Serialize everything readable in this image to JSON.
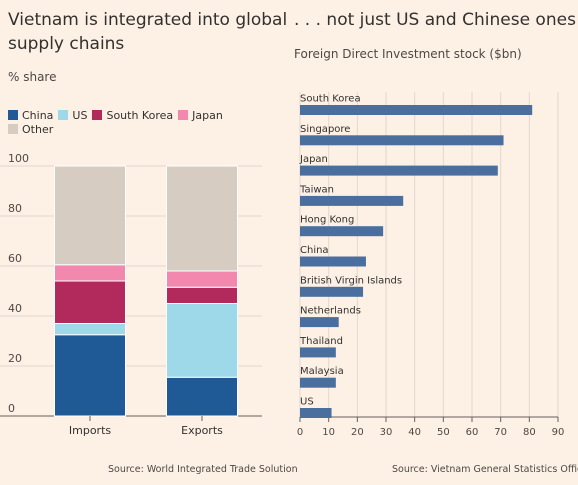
{
  "left_panel": {
    "title_line1": "Vietnam is integrated into global",
    "title_line2": "supply chains",
    "unit_label": "% share",
    "source": "Source: World Integrated Trade Solution"
  },
  "right_panel": {
    "title": ". . . not just US and Chinese ones",
    "subtitle": "Foreign Direct Investment stock ($bn)",
    "source": "Source: Vietnam General Statistics Office"
  },
  "colors": {
    "China": "#1f5a96",
    "US": "#9dd9e9",
    "South Korea": "#b22a5c",
    "Japan": "#f388ae",
    "Other": "#d7ccc2",
    "fdi_bar": "#4a6e9e",
    "background": "#fdf1e6"
  },
  "chart_data": [
    {
      "type": "bar",
      "stacked": true,
      "title": "Vietnam is integrated into global supply chains",
      "ylabel": "% share",
      "categories": [
        "Imports",
        "Exports"
      ],
      "series": [
        {
          "name": "China",
          "values": [
            32.5,
            15.5
          ]
        },
        {
          "name": "US",
          "values": [
            4.5,
            29.5
          ]
        },
        {
          "name": "South Korea",
          "values": [
            17.0,
            6.5
          ]
        },
        {
          "name": "Japan",
          "values": [
            6.5,
            6.5
          ]
        },
        {
          "name": "Other",
          "values": [
            39.5,
            42.0
          ]
        }
      ],
      "ylim": [
        0,
        100
      ],
      "yticks": [
        0,
        20,
        40,
        60,
        80,
        100
      ],
      "grid": true,
      "legend": "top"
    },
    {
      "type": "bar",
      "orientation": "horizontal",
      "title": ". . . not just US and Chinese ones",
      "subtitle": "Foreign Direct Investment stock ($bn)",
      "categories": [
        "South Korea",
        "Singapore",
        "Japan",
        "Taiwan",
        "Hong Kong",
        "China",
        "British Virgin Islands",
        "Netherlands",
        "Thailand",
        "Malaysia",
        "US"
      ],
      "values": [
        81,
        71,
        69,
        36,
        29,
        23,
        22,
        13.5,
        12.5,
        12.5,
        11
      ],
      "xlim": [
        0,
        90
      ],
      "xticks": [
        0,
        10,
        20,
        30,
        40,
        50,
        60,
        70,
        80,
        90
      ],
      "grid": true
    }
  ]
}
